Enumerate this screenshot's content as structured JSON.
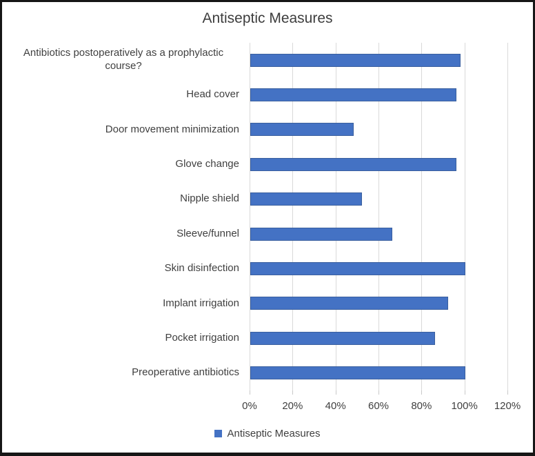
{
  "chart_data": {
    "type": "bar",
    "orientation": "horizontal",
    "title": "Antiseptic Measures",
    "categories": [
      "Antibiotics postoperatively as a prophylactic course?",
      "Head cover",
      "Door movement minimization",
      "Glove change",
      "Nipple shield",
      "Sleeve/funnel",
      "Skin disinfection",
      "Implant irrigation",
      "Pocket irrigation",
      "Preoperative antibiotics"
    ],
    "values": [
      98,
      96,
      48,
      96,
      52,
      66,
      100,
      92,
      86,
      100
    ],
    "unit": "%",
    "xlabel": "",
    "ylabel": "",
    "xlim": [
      0,
      120
    ],
    "x_ticks": [
      "0%",
      "20%",
      "40%",
      "60%",
      "80%",
      "100%",
      "120%"
    ],
    "x_tick_values": [
      0,
      20,
      40,
      60,
      80,
      100,
      120
    ],
    "grid": true,
    "legend": "Antiseptic Measures",
    "legend_position": "bottom",
    "colors": {
      "bar_fill": "#4472C4",
      "bar_border": "#3a5f9e",
      "gridline": "#d9d9d9",
      "text": "#3f3f3f",
      "frame_border": "#161616",
      "background": "#ffffff"
    }
  }
}
